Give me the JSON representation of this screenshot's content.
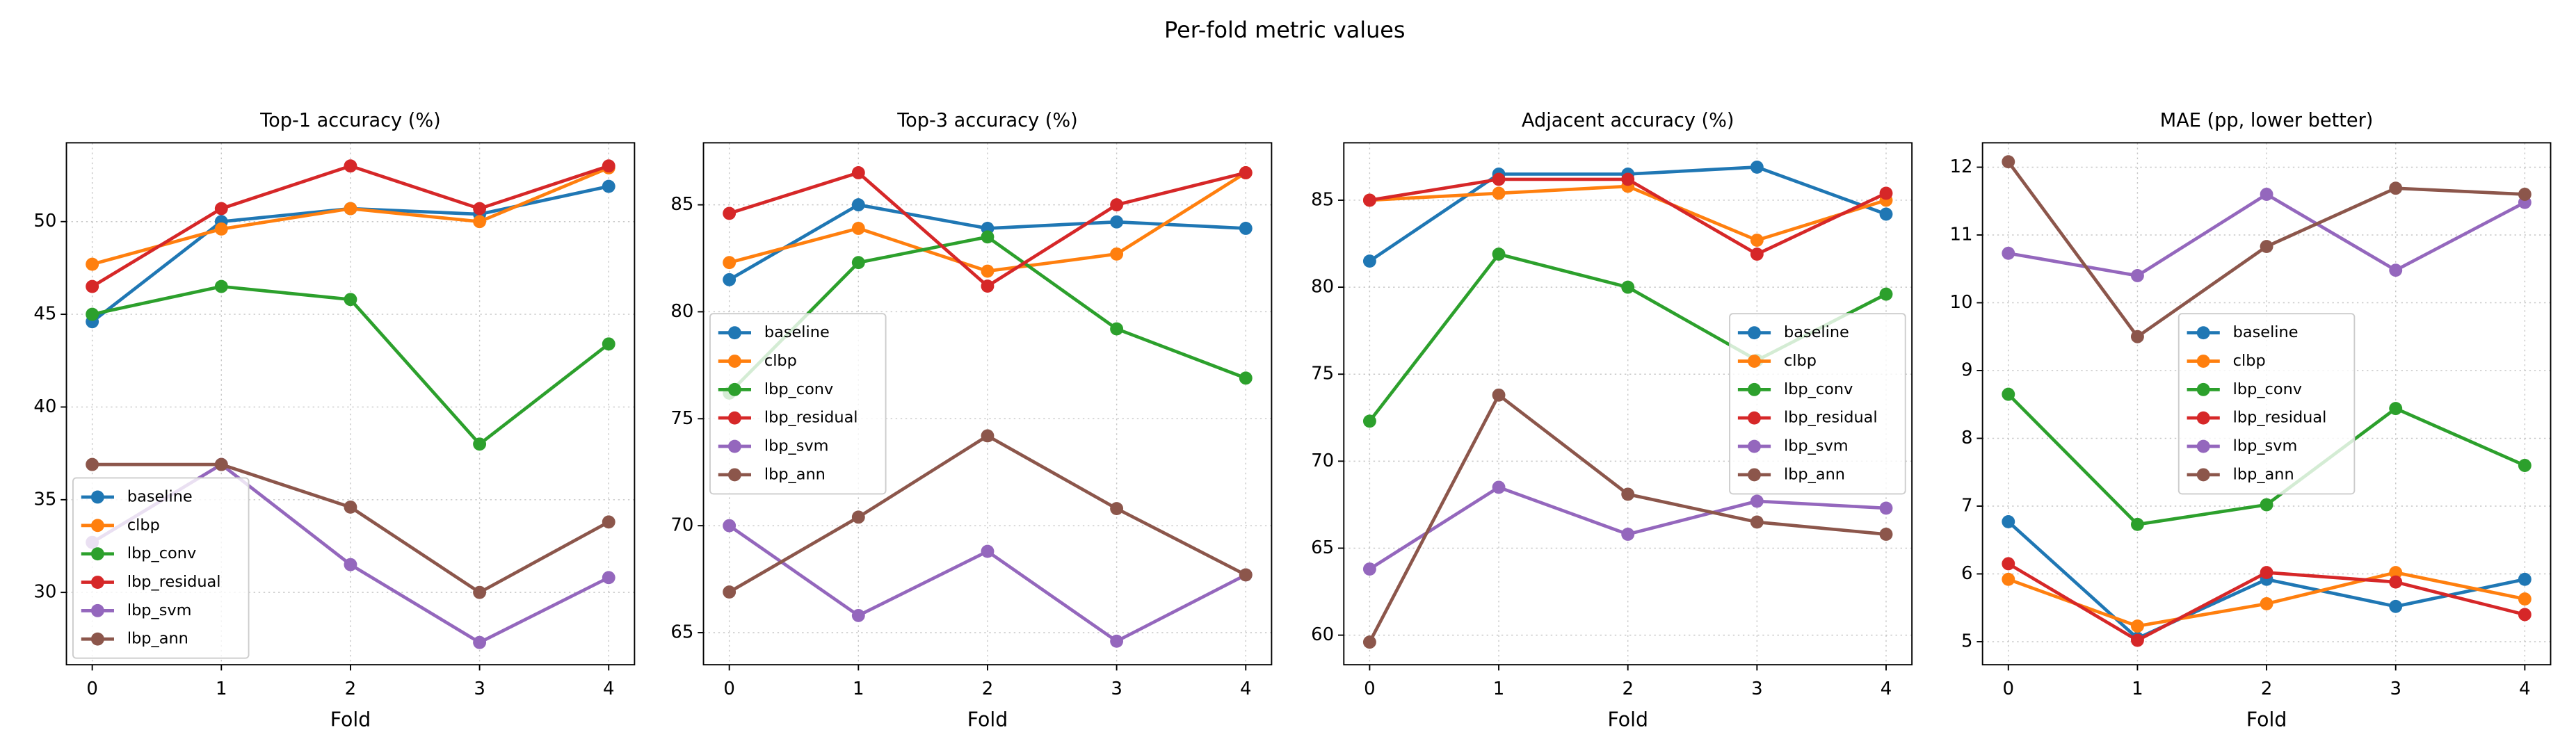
{
  "title": "Per-fold metric values",
  "chart_data": [
    {
      "type": "line",
      "title": "Top-1 accuracy (%)",
      "x_label": "Fold",
      "x": [
        0,
        1,
        2,
        3,
        4
      ],
      "xlim": [
        -0.2,
        4.2
      ],
      "xticks": [
        0,
        1,
        2,
        3,
        4
      ],
      "ylim": [
        26.1,
        54.25
      ],
      "yticks": [
        30,
        35,
        40,
        45,
        50
      ],
      "grid": true,
      "legend_loc": "lower left",
      "series": [
        {
          "name": "baseline",
          "color": "#1f77b4",
          "values": [
            44.6,
            50.0,
            50.7,
            50.4,
            51.9
          ]
        },
        {
          "name": "clbp",
          "color": "#ff7f0e",
          "values": [
            47.7,
            49.6,
            50.7,
            50.0,
            52.9
          ]
        },
        {
          "name": "lbp_conv",
          "color": "#2ca02c",
          "values": [
            45.0,
            46.5,
            45.8,
            38.0,
            43.4
          ]
        },
        {
          "name": "lbp_residual",
          "color": "#d62728",
          "values": [
            46.5,
            50.7,
            53.0,
            50.7,
            53.0
          ]
        },
        {
          "name": "lbp_svm",
          "color": "#9467bd",
          "values": [
            32.7,
            36.9,
            31.5,
            27.3,
            30.8
          ]
        },
        {
          "name": "lbp_ann",
          "color": "#8c564b",
          "values": [
            36.9,
            36.9,
            34.6,
            30.0,
            33.8
          ]
        }
      ]
    },
    {
      "type": "line",
      "title": "Top-3 accuracy (%)",
      "x_label": "Fold",
      "x": [
        0,
        1,
        2,
        3,
        4
      ],
      "xlim": [
        -0.2,
        4.2
      ],
      "xticks": [
        0,
        1,
        2,
        3,
        4
      ],
      "ylim": [
        63.5,
        87.9
      ],
      "yticks": [
        65,
        70,
        75,
        80,
        85
      ],
      "grid": true,
      "legend_loc": "center left",
      "series": [
        {
          "name": "baseline",
          "color": "#1f77b4",
          "values": [
            81.5,
            85.0,
            83.9,
            84.2,
            83.9
          ]
        },
        {
          "name": "clbp",
          "color": "#ff7f0e",
          "values": [
            82.3,
            83.9,
            81.9,
            82.7,
            86.5
          ]
        },
        {
          "name": "lbp_conv",
          "color": "#2ca02c",
          "values": [
            76.2,
            82.3,
            83.5,
            79.2,
            76.9
          ]
        },
        {
          "name": "lbp_residual",
          "color": "#d62728",
          "values": [
            84.6,
            86.5,
            81.2,
            85.0,
            86.5
          ]
        },
        {
          "name": "lbp_svm",
          "color": "#9467bd",
          "values": [
            70.0,
            65.8,
            68.8,
            64.6,
            67.7
          ]
        },
        {
          "name": "lbp_ann",
          "color": "#8c564b",
          "values": [
            66.9,
            70.4,
            74.2,
            70.8,
            67.7
          ]
        }
      ]
    },
    {
      "type": "line",
      "title": "Adjacent accuracy (%)",
      "x_label": "Fold",
      "x": [
        0,
        1,
        2,
        3,
        4
      ],
      "xlim": [
        -0.2,
        4.2
      ],
      "xticks": [
        0,
        1,
        2,
        3,
        4
      ],
      "ylim": [
        58.3,
        88.3
      ],
      "yticks": [
        60,
        65,
        70,
        75,
        80,
        85
      ],
      "grid": true,
      "legend_loc": "center right",
      "series": [
        {
          "name": "baseline",
          "color": "#1f77b4",
          "values": [
            81.5,
            86.5,
            86.5,
            86.9,
            84.2
          ]
        },
        {
          "name": "clbp",
          "color": "#ff7f0e",
          "values": [
            85.0,
            85.4,
            85.8,
            82.7,
            85.0
          ]
        },
        {
          "name": "lbp_conv",
          "color": "#2ca02c",
          "values": [
            72.3,
            81.9,
            80.0,
            75.8,
            79.6
          ]
        },
        {
          "name": "lbp_residual",
          "color": "#d62728",
          "values": [
            85.0,
            86.2,
            86.2,
            81.9,
            85.4
          ]
        },
        {
          "name": "lbp_svm",
          "color": "#9467bd",
          "values": [
            63.8,
            68.5,
            65.8,
            67.7,
            67.3
          ]
        },
        {
          "name": "lbp_ann",
          "color": "#8c564b",
          "values": [
            59.6,
            73.8,
            68.1,
            66.5,
            65.8
          ]
        }
      ]
    },
    {
      "type": "line",
      "title": "MAE (pp, lower better)",
      "x_label": "Fold",
      "x": [
        0,
        1,
        2,
        3,
        4
      ],
      "xlim": [
        -0.2,
        4.2
      ],
      "xticks": [
        0,
        1,
        2,
        3,
        4
      ],
      "ylim": [
        4.66,
        12.36
      ],
      "yticks": [
        5,
        6,
        7,
        8,
        9,
        10,
        11,
        12
      ],
      "grid": true,
      "legend_loc": "center",
      "series": [
        {
          "name": "baseline",
          "color": "#1f77b4",
          "values": [
            6.77,
            5.05,
            5.92,
            5.52,
            5.92
          ]
        },
        {
          "name": "clbp",
          "color": "#ff7f0e",
          "values": [
            5.92,
            5.23,
            5.56,
            6.02,
            5.63
          ]
        },
        {
          "name": "lbp_conv",
          "color": "#2ca02c",
          "values": [
            8.65,
            6.73,
            7.02,
            8.44,
            7.6
          ]
        },
        {
          "name": "lbp_residual",
          "color": "#d62728",
          "values": [
            6.15,
            5.02,
            6.02,
            5.88,
            5.4
          ]
        },
        {
          "name": "lbp_svm",
          "color": "#9467bd",
          "values": [
            10.73,
            10.4,
            11.6,
            10.48,
            11.48
          ]
        },
        {
          "name": "lbp_ann",
          "color": "#8c564b",
          "values": [
            12.08,
            9.5,
            10.83,
            11.69,
            11.6
          ]
        }
      ]
    }
  ]
}
